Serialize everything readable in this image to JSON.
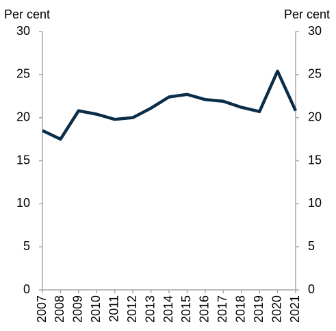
{
  "chart_data": {
    "type": "line",
    "y_label": "Per cent",
    "y2_label": "Per cent",
    "categories": [
      "2007",
      "2008",
      "2009",
      "2010",
      "2011",
      "2012",
      "2013",
      "2014",
      "2015",
      "2016",
      "2017",
      "2018",
      "2019",
      "2020",
      "2021"
    ],
    "values": [
      18.5,
      17.5,
      20.8,
      20.4,
      19.8,
      20.0,
      21.1,
      22.4,
      22.7,
      22.1,
      21.9,
      21.2,
      20.7,
      25.4,
      20.8
    ],
    "color": "#0b2d48",
    "ylim": [
      0,
      30
    ],
    "yticks": [
      0,
      5,
      10,
      15,
      20,
      25,
      30
    ],
    "y2lim": [
      0,
      30
    ],
    "y2ticks": [
      0,
      5,
      10,
      15,
      20,
      25,
      30
    ],
    "grid": false
  }
}
